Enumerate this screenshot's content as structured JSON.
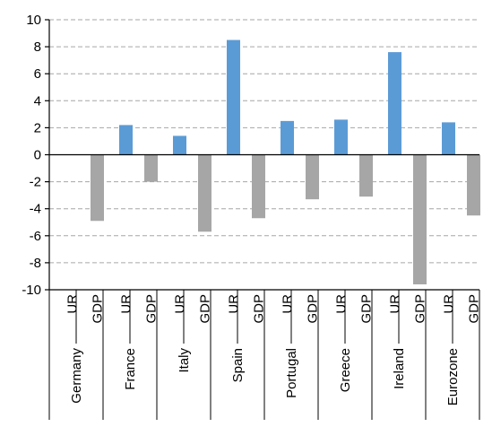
{
  "chart_data": {
    "type": "bar",
    "title": "",
    "xlabel": "",
    "ylabel": "",
    "ylim": [
      -10,
      10
    ],
    "yticks": [
      10,
      8,
      6,
      4,
      2,
      0,
      -2,
      -4,
      -6,
      -8,
      -10
    ],
    "grid": true,
    "categories": [
      "Germany",
      "France",
      "Italy",
      "Spain",
      "Portugal",
      "Greece",
      "Ireland",
      "Eurozone"
    ],
    "sub_labels": [
      "UR",
      "GDP"
    ],
    "series": [
      {
        "label": "UR",
        "values": [
          0,
          2.2,
          1.4,
          8.5,
          2.5,
          2.6,
          7.6,
          2.4
        ]
      },
      {
        "label": "GDP",
        "values": [
          -4.9,
          -2.0,
          -5.7,
          -4.7,
          -3.3,
          -3.1,
          -9.6,
          -4.5
        ]
      }
    ],
    "colors": {
      "UR": "#5b9bd5",
      "GDP": "#a6a6a6"
    }
  }
}
